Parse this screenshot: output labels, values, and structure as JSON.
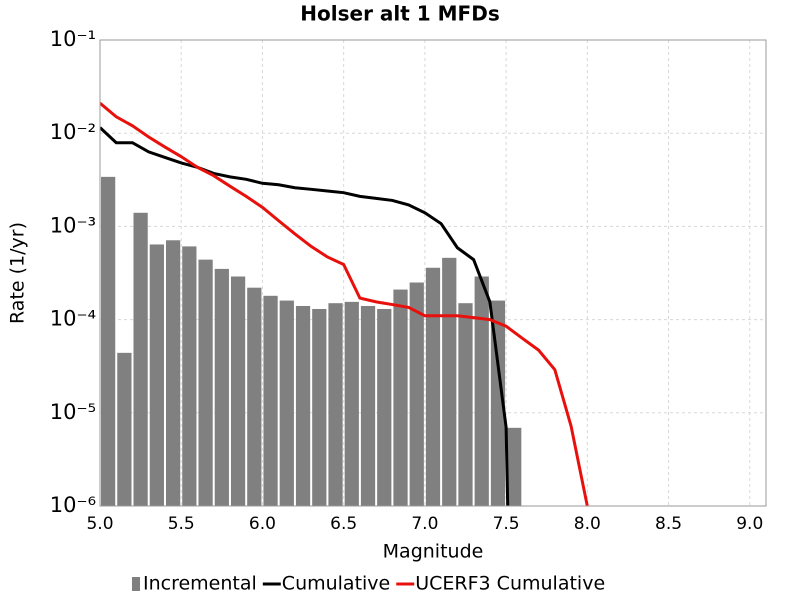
{
  "chart_data": {
    "type": "combo",
    "title": "Holser alt 1 MFDs",
    "x_label": "Magnitude",
    "y_label": "Rate (1/yr)",
    "log_y": true,
    "grid": true,
    "legend": "bottom",
    "xlim": [
      5.0,
      9.1
    ],
    "ylim": [
      1e-06,
      0.1
    ],
    "xticks": [
      {
        "value": 5.0,
        "label": "5.0"
      },
      5.5,
      {
        "value": 6.0,
        "label": "6.0"
      },
      6.5,
      {
        "value": 7.0,
        "label": "7.0"
      },
      7.5,
      {
        "value": 8.0,
        "label": "8.0"
      },
      8.5,
      {
        "value": 9.0,
        "label": "9.0"
      }
    ],
    "yticks": [
      {
        "value": 1e-06,
        "label": "10⁻⁶"
      },
      {
        "value": 1e-05,
        "label": "10⁻⁵"
      },
      {
        "value": 0.0001,
        "label": "10⁻⁴"
      },
      {
        "value": 0.001,
        "label": "10⁻³"
      },
      {
        "value": 0.01,
        "label": "10⁻²"
      },
      {
        "value": 0.1,
        "label": "10⁻¹"
      }
    ],
    "series": [
      {
        "name": "Incremental",
        "type": "bar",
        "color": "#808080",
        "x": [
          5.05,
          5.15,
          5.25,
          5.35,
          5.45,
          5.55,
          5.65,
          5.75,
          5.85,
          5.95,
          6.05,
          6.15,
          6.25,
          6.35,
          6.45,
          6.55,
          6.65,
          6.75,
          6.85,
          6.95,
          7.05,
          7.15,
          7.25,
          7.35,
          7.45,
          7.55
        ],
        "values": [
          0.0034,
          4.4e-05,
          0.0014,
          0.00064,
          0.00071,
          0.00061,
          0.00044,
          0.00035,
          0.00029,
          0.00022,
          0.00018,
          0.00016,
          0.00014,
          0.00013,
          0.00015,
          0.000155,
          0.00014,
          0.00013,
          0.00021,
          0.00025,
          0.00036,
          0.00046,
          0.00015,
          0.00029,
          0.00016,
          6.9e-06
        ]
      },
      {
        "name": "Cumulative",
        "type": "line",
        "color": "#000000",
        "x": [
          5.0,
          5.1,
          5.2,
          5.3,
          5.4,
          5.5,
          5.6,
          5.7,
          5.8,
          5.9,
          6.0,
          6.1,
          6.2,
          6.3,
          6.4,
          6.5,
          6.6,
          6.7,
          6.8,
          6.9,
          7.0,
          7.1,
          7.2,
          7.3,
          7.4,
          7.5,
          7.51
        ],
        "values": [
          0.0115,
          0.0079,
          0.0079,
          0.0063,
          0.0055,
          0.0048,
          0.0043,
          0.0037,
          0.0034,
          0.0032,
          0.0029,
          0.0028,
          0.0026,
          0.0025,
          0.0024,
          0.0023,
          0.0021,
          0.002,
          0.0019,
          0.0017,
          0.0014,
          0.00107,
          0.00059,
          0.00044,
          0.000155,
          7e-06,
          1e-06
        ]
      },
      {
        "name": "UCERF3 Cumulative",
        "type": "line",
        "color": "#e8100c",
        "x": [
          5.0,
          5.1,
          5.2,
          5.3,
          5.4,
          5.5,
          5.6,
          5.7,
          5.8,
          5.9,
          6.0,
          6.1,
          6.2,
          6.3,
          6.4,
          6.5,
          6.6,
          6.7,
          6.8,
          6.9,
          7.0,
          7.1,
          7.2,
          7.3,
          7.4,
          7.5,
          7.6,
          7.7,
          7.8,
          7.9,
          8.0
        ],
        "values": [
          0.021,
          0.015,
          0.012,
          0.0091,
          0.0071,
          0.0056,
          0.0043,
          0.0035,
          0.0027,
          0.0021,
          0.0016,
          0.00115,
          0.00083,
          0.00061,
          0.00047,
          0.00039,
          0.00017,
          0.000155,
          0.000145,
          0.000135,
          0.00011,
          0.00011,
          0.00011,
          0.000105,
          0.0001,
          8.5e-05,
          6.3e-05,
          4.7e-05,
          2.9e-05,
          7.2e-06,
          1e-06
        ]
      }
    ]
  }
}
